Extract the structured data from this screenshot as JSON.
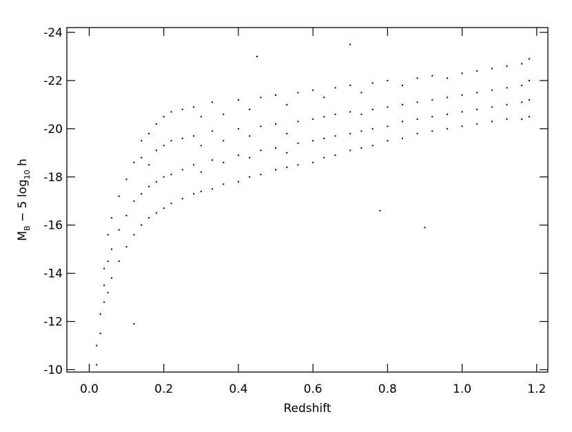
{
  "chart_data": {
    "type": "scatter",
    "x_label": "Redshift",
    "y_label_parts": [
      "M",
      "B",
      " − 5 log",
      "10",
      " h"
    ],
    "color": "#000000",
    "xlim": [
      -0.06,
      1.23
    ],
    "ylim": [
      -9.9,
      -24.2
    ],
    "xticks": [
      {
        "value": 0,
        "label": "0.0"
      },
      0.2,
      0.4,
      0.6,
      0.8,
      {
        "value": 1,
        "label": "1.0"
      },
      1.2
    ],
    "yticks": [
      -10,
      -12,
      -14,
      -16,
      -18,
      -20,
      -22,
      -24
    ],
    "x": [
      0.02,
      0.02,
      0.03,
      0.03,
      0.04,
      0.04,
      0.04,
      0.05,
      0.05,
      0.05,
      0.06,
      0.06,
      0.06,
      0.08,
      0.08,
      0.08,
      0.1,
      0.1,
      0.1,
      0.12,
      0.12,
      0.12,
      0.14,
      0.14,
      0.14,
      0.14,
      0.16,
      0.16,
      0.16,
      0.16,
      0.18,
      0.18,
      0.18,
      0.18,
      0.2,
      0.2,
      0.2,
      0.2,
      0.22,
      0.22,
      0.22,
      0.22,
      0.25,
      0.25,
      0.25,
      0.25,
      0.28,
      0.28,
      0.28,
      0.28,
      0.3,
      0.3,
      0.3,
      0.3,
      0.33,
      0.33,
      0.33,
      0.33,
      0.36,
      0.36,
      0.36,
      0.36,
      0.4,
      0.4,
      0.4,
      0.4,
      0.43,
      0.43,
      0.43,
      0.43,
      0.46,
      0.46,
      0.46,
      0.46,
      0.5,
      0.5,
      0.5,
      0.5,
      0.53,
      0.53,
      0.53,
      0.53,
      0.56,
      0.56,
      0.56,
      0.56,
      0.6,
      0.6,
      0.6,
      0.6,
      0.63,
      0.63,
      0.63,
      0.63,
      0.66,
      0.66,
      0.66,
      0.66,
      0.7,
      0.7,
      0.7,
      0.7,
      0.73,
      0.73,
      0.73,
      0.73,
      0.76,
      0.76,
      0.76,
      0.76,
      0.8,
      0.8,
      0.8,
      0.8,
      0.84,
      0.84,
      0.84,
      0.84,
      0.88,
      0.88,
      0.88,
      0.88,
      0.92,
      0.92,
      0.92,
      0.92,
      0.96,
      0.96,
      0.96,
      0.96,
      1.0,
      1.0,
      1.0,
      1.0,
      1.04,
      1.04,
      1.04,
      1.04,
      1.08,
      1.08,
      1.08,
      1.08,
      1.12,
      1.12,
      1.12,
      1.12,
      1.16,
      1.16,
      1.16,
      1.16,
      1.18,
      1.18,
      1.18,
      1.18,
      0.45,
      0.7,
      0.9,
      0.78,
      0.12
    ],
    "values": [
      -10.2,
      -11,
      -11.5,
      -12.3,
      -12.8,
      -13.5,
      -14.2,
      -13.2,
      -14.5,
      -15.6,
      -13.8,
      -15,
      -16.3,
      -14.5,
      -15.8,
      -17.2,
      -15.1,
      -16.4,
      -17.9,
      -15.6,
      -17,
      -18.6,
      -16,
      -17.3,
      -18.8,
      -19.5,
      -16.3,
      -17.6,
      -18.5,
      -19.8,
      -16.5,
      -17.8,
      -19.1,
      -20.2,
      -16.7,
      -18,
      -19.3,
      -20.5,
      -16.9,
      -18.1,
      -19.5,
      -20.7,
      -17.1,
      -18.3,
      -19.6,
      -20.8,
      -17.3,
      -18.5,
      -19.7,
      -20.9,
      -17.4,
      -18.2,
      -19.3,
      -20.5,
      -17.5,
      -18.7,
      -19.9,
      -21.1,
      -17.7,
      -18.6,
      -19.5,
      -20.6,
      -17.8,
      -18.9,
      -20,
      -21.2,
      -18,
      -18.8,
      -19.7,
      -20.8,
      -18.1,
      -19.1,
      -20.1,
      -21.3,
      -18.3,
      -19.2,
      -20.2,
      -21.4,
      -18.4,
      -19,
      -19.8,
      -21,
      -18.5,
      -19.4,
      -20.3,
      -21.5,
      -18.6,
      -19.5,
      -20.4,
      -21.6,
      -18.8,
      -19.6,
      -20.5,
      -21.3,
      -18.9,
      -19.7,
      -20.6,
      -21.7,
      -19.1,
      -19.8,
      -20.7,
      -21.8,
      -19.2,
      -19.9,
      -20.6,
      -21.5,
      -19.3,
      -20,
      -20.8,
      -21.9,
      -19.5,
      -20.1,
      -20.9,
      -22,
      -19.6,
      -20.3,
      -21,
      -21.8,
      -19.8,
      -20.4,
      -21.1,
      -22.1,
      -19.9,
      -20.5,
      -21.2,
      -22.2,
      -20,
      -20.6,
      -21.3,
      -22.1,
      -20.1,
      -20.7,
      -21.4,
      -22.3,
      -20.2,
      -20.8,
      -21.5,
      -22.4,
      -20.3,
      -20.9,
      -21.6,
      -22.5,
      -20.4,
      -21,
      -21.7,
      -22.6,
      -20.4,
      -21.1,
      -21.8,
      -22.7,
      -20.5,
      -21.2,
      -22,
      -22.9,
      -23,
      -23.5,
      -15.9,
      -16.6,
      -11.9
    ]
  }
}
